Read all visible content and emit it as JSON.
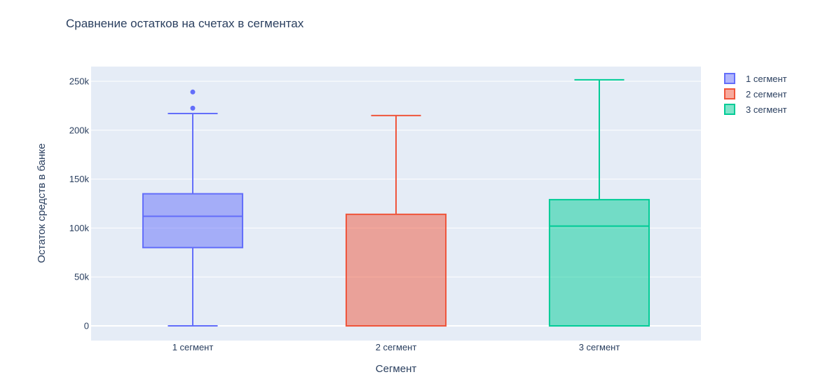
{
  "chart_data": {
    "type": "box",
    "title": "Сравнение остатков на счетах в сегментах",
    "xlabel": "Сегмент",
    "ylabel": "Остаток средств в банке",
    "ylim": [
      -15000,
      265000
    ],
    "yticks": [
      {
        "value": 0,
        "label": "0"
      },
      {
        "value": 50000,
        "label": "50k"
      },
      {
        "value": 100000,
        "label": "100k"
      },
      {
        "value": 150000,
        "label": "150k"
      },
      {
        "value": 200000,
        "label": "200k"
      },
      {
        "value": 250000,
        "label": "250k"
      }
    ],
    "categories": [
      "1 сегмент",
      "2 сегмент",
      "3 сегмент"
    ],
    "grid": true,
    "legend_position": "top-right",
    "series": [
      {
        "name": "1 сегмент",
        "category": "1 сегмент",
        "color": "#636efa",
        "min": 0,
        "q1": 80000,
        "median": 112000,
        "q3": 135000,
        "max": 217000,
        "outliers": [
          222500,
          239000
        ]
      },
      {
        "name": "2 сегмент",
        "category": "2 сегмент",
        "color": "#ef553b",
        "min": 0,
        "q1": 0,
        "median": 0,
        "q3": 114000,
        "max": 215000,
        "outliers": []
      },
      {
        "name": "3 сегмент",
        "category": "3 сегмент",
        "color": "#00cc96",
        "min": 0,
        "q1": 0,
        "median": 102000,
        "q3": 129000,
        "max": 251500,
        "outliers": []
      }
    ]
  }
}
